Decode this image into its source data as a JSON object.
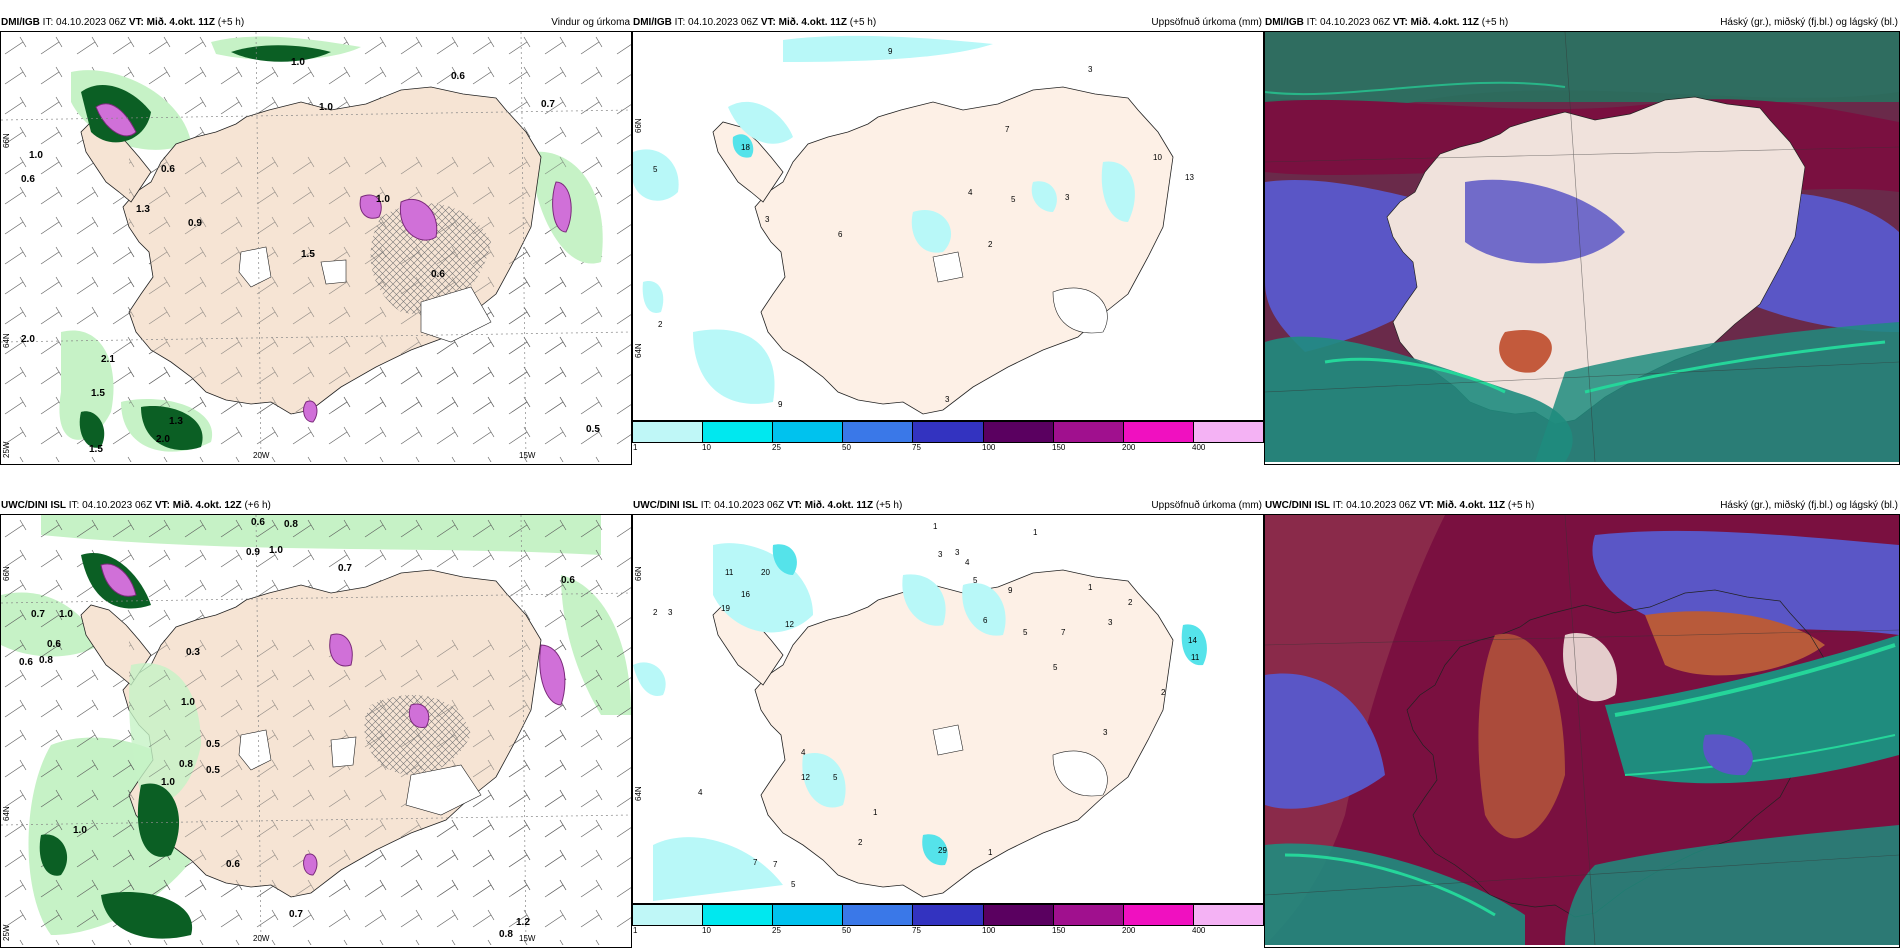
{
  "panels": {
    "p1": {
      "model": "DMI/IGB",
      "it_label": "IT:",
      "it": "04.10.2023 06Z",
      "vt_label": "VT:",
      "vt": "Mið. 4.okt. 11Z",
      "lead": "(+5 h)",
      "title": "Vindur og úrkoma",
      "lat_labels": [
        "66N",
        "64N"
      ],
      "lon_labels": [
        "25W",
        "20W",
        "15W"
      ],
      "values": [
        "0.6",
        "1.0",
        "0.6",
        "1.0",
        "0.7",
        "0.6",
        "0.9",
        "1.0",
        "1.3",
        "1.3",
        "1.5",
        "2.0",
        "2.1",
        "2.0",
        "1.5",
        "0.5",
        "0.6",
        "1.0",
        "1.5"
      ]
    },
    "p2": {
      "model": "DMI/IGB",
      "it_label": "IT:",
      "it": "04.10.2023 06Z",
      "vt_label": "VT:",
      "vt": "Mið. 4.okt. 11Z",
      "lead": "(+5 h)",
      "title": "Uppsöfnuð úrkoma (mm)",
      "lat_labels": [
        "66N",
        "64N"
      ],
      "values": [
        "9",
        "3",
        "5",
        "18",
        "2",
        "3",
        "6",
        "4",
        "5",
        "3",
        "7",
        "10",
        "13",
        "9",
        "2",
        "3"
      ]
    },
    "p3": {
      "model": "DMI/IGB",
      "it_label": "IT:",
      "it": "04.10.2023 06Z",
      "vt_label": "VT:",
      "vt": "Mið. 4.okt. 11Z",
      "lead": "(+5 h)",
      "title": "Háský (gr.), miðský (fj.bl.) og lágský (bl.)"
    },
    "p4": {
      "model": "UWC/DINI ISL",
      "it_label": "IT:",
      "it": "04.10.2023 06Z",
      "vt_label": "VT:",
      "vt": "Mið. 4.okt. 12Z",
      "lead": "(+6 h)",
      "title": "",
      "lat_labels": [
        "66N",
        "64N"
      ],
      "lon_labels": [
        "25W",
        "20W",
        "15W"
      ],
      "values": [
        "0.6",
        "0.8",
        "0.9",
        "1.0",
        "0.7",
        "0.6",
        "0.7",
        "1.0",
        "0.6",
        "0.8",
        "0.6",
        "0.3",
        "1.0",
        "0.8",
        "0.5",
        "1.0",
        "0.6",
        "0.7",
        "0.8",
        "1.2",
        "1.0",
        "0.5"
      ]
    },
    "p5": {
      "model": "UWC/DINI ISL",
      "it_label": "IT:",
      "it": "04.10.2023 06Z",
      "vt_label": "VT:",
      "vt": "Mið. 4.okt. 11Z",
      "lead": "(+5 h)",
      "title": "Uppsöfnuð úrkoma (mm)",
      "lat_labels": [
        "66N",
        "64N"
      ],
      "values": [
        "1",
        "1",
        "3",
        "3",
        "4",
        "11",
        "20",
        "16",
        "19",
        "12",
        "2",
        "3",
        "5",
        "6",
        "9",
        "5",
        "7",
        "3",
        "5",
        "1",
        "2",
        "4",
        "12",
        "5",
        "1",
        "4",
        "7",
        "7",
        "5",
        "2",
        "29",
        "1",
        "14",
        "11",
        "2",
        "3"
      ]
    },
    "p6": {
      "model": "UWC/DINI ISL",
      "it_label": "IT:",
      "it": "04.10.2023 06Z",
      "vt_label": "VT:",
      "vt": "Mið. 4.okt. 11Z",
      "lead": "(+5 h)",
      "title": "Háský (gr.), miðský (fj.bl.) og lágský (bl.)"
    }
  },
  "colorbar": {
    "labels": [
      "1",
      "10",
      "25",
      "50",
      "75",
      "100",
      "150",
      "200",
      "400"
    ],
    "colors": [
      "#bff7f7",
      "#00e8ef",
      "#00c2ee",
      "#3a78e8",
      "#3333c0",
      "#5a0060",
      "#a0108e",
      "#f010c0",
      "#f4b2f4"
    ]
  },
  "colors": {
    "land": "#f6e4d4",
    "land_rain": "#fdf0e6",
    "precip_light": "#b8f8f8",
    "wind_precip_light": "#c6f2c6",
    "wind_precip_dark": "#0b5f24",
    "snow": "#d070d8",
    "high_cloud": "#7a1040",
    "mid_cloud": "#5a56c6",
    "low_cloud": "#1f8c7e",
    "low_cloud_edge": "#25d69a"
  }
}
